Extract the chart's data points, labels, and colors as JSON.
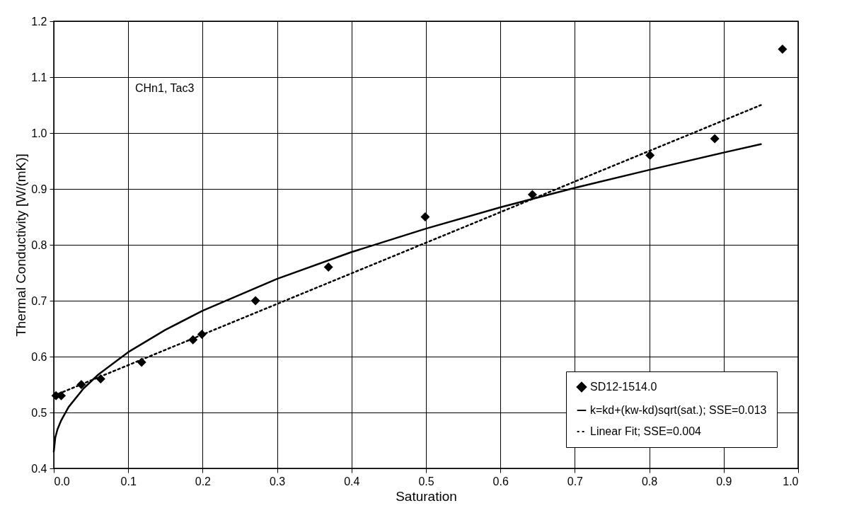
{
  "chart_data": {
    "type": "scatter",
    "xlabel": "Saturation",
    "ylabel": "Thermal Conductivity [W/(mK)]",
    "xlim": [
      0,
      1
    ],
    "ylim": [
      0.4,
      1.2
    ],
    "xticks": [
      {
        "value": 0,
        "label": "0.0"
      },
      0.1,
      0.2,
      0.3,
      0.4,
      0.5,
      0.6,
      0.7,
      0.8,
      0.9,
      {
        "value": 1,
        "label": "1.0"
      }
    ],
    "yticks": [
      0.4,
      0.5,
      0.6,
      0.7,
      0.8,
      0.9,
      {
        "value": 1,
        "label": "1.0"
      },
      1.1,
      1.2
    ],
    "grid": true,
    "legend": "bottom right",
    "annotations": [
      "CHn1, Tac3"
    ],
    "series": [
      {
        "name": "SD12-1514.0",
        "marker": "diamond",
        "color": "#000000",
        "x": [
          0.003,
          0.01,
          0.037,
          0.063,
          0.118,
          0.187,
          0.199,
          0.271,
          0.369,
          0.499,
          0.643,
          0.801,
          0.888,
          0.979
        ],
        "values": [
          0.53,
          0.53,
          0.55,
          0.56,
          0.59,
          0.63,
          0.64,
          0.7,
          0.76,
          0.85,
          0.89,
          0.96,
          0.99,
          1.15
        ]
      },
      {
        "name": "k=kd+(kw-kd)sqrt(sat.); SSE=0.013",
        "type": "line",
        "line_style": "solid",
        "color": "#000000",
        "x": [
          0,
          0.002,
          0.005,
          0.01,
          0.02,
          0.04,
          0.06,
          0.1,
          0.15,
          0.2,
          0.3,
          0.4,
          0.5,
          0.6,
          0.7,
          0.8,
          0.9,
          0.95
        ],
        "values": [
          0.43,
          0.455,
          0.47,
          0.486,
          0.51,
          0.543,
          0.568,
          0.608,
          0.648,
          0.682,
          0.739,
          0.787,
          0.829,
          0.867,
          0.902,
          0.934,
          0.965,
          0.98
        ]
      },
      {
        "name": "Linear Fit; SSE=0.004",
        "type": "line",
        "line_style": "dotted",
        "color": "#000000",
        "x": [
          0,
          0.95
        ],
        "values": [
          0.53,
          1.05
        ]
      }
    ]
  }
}
